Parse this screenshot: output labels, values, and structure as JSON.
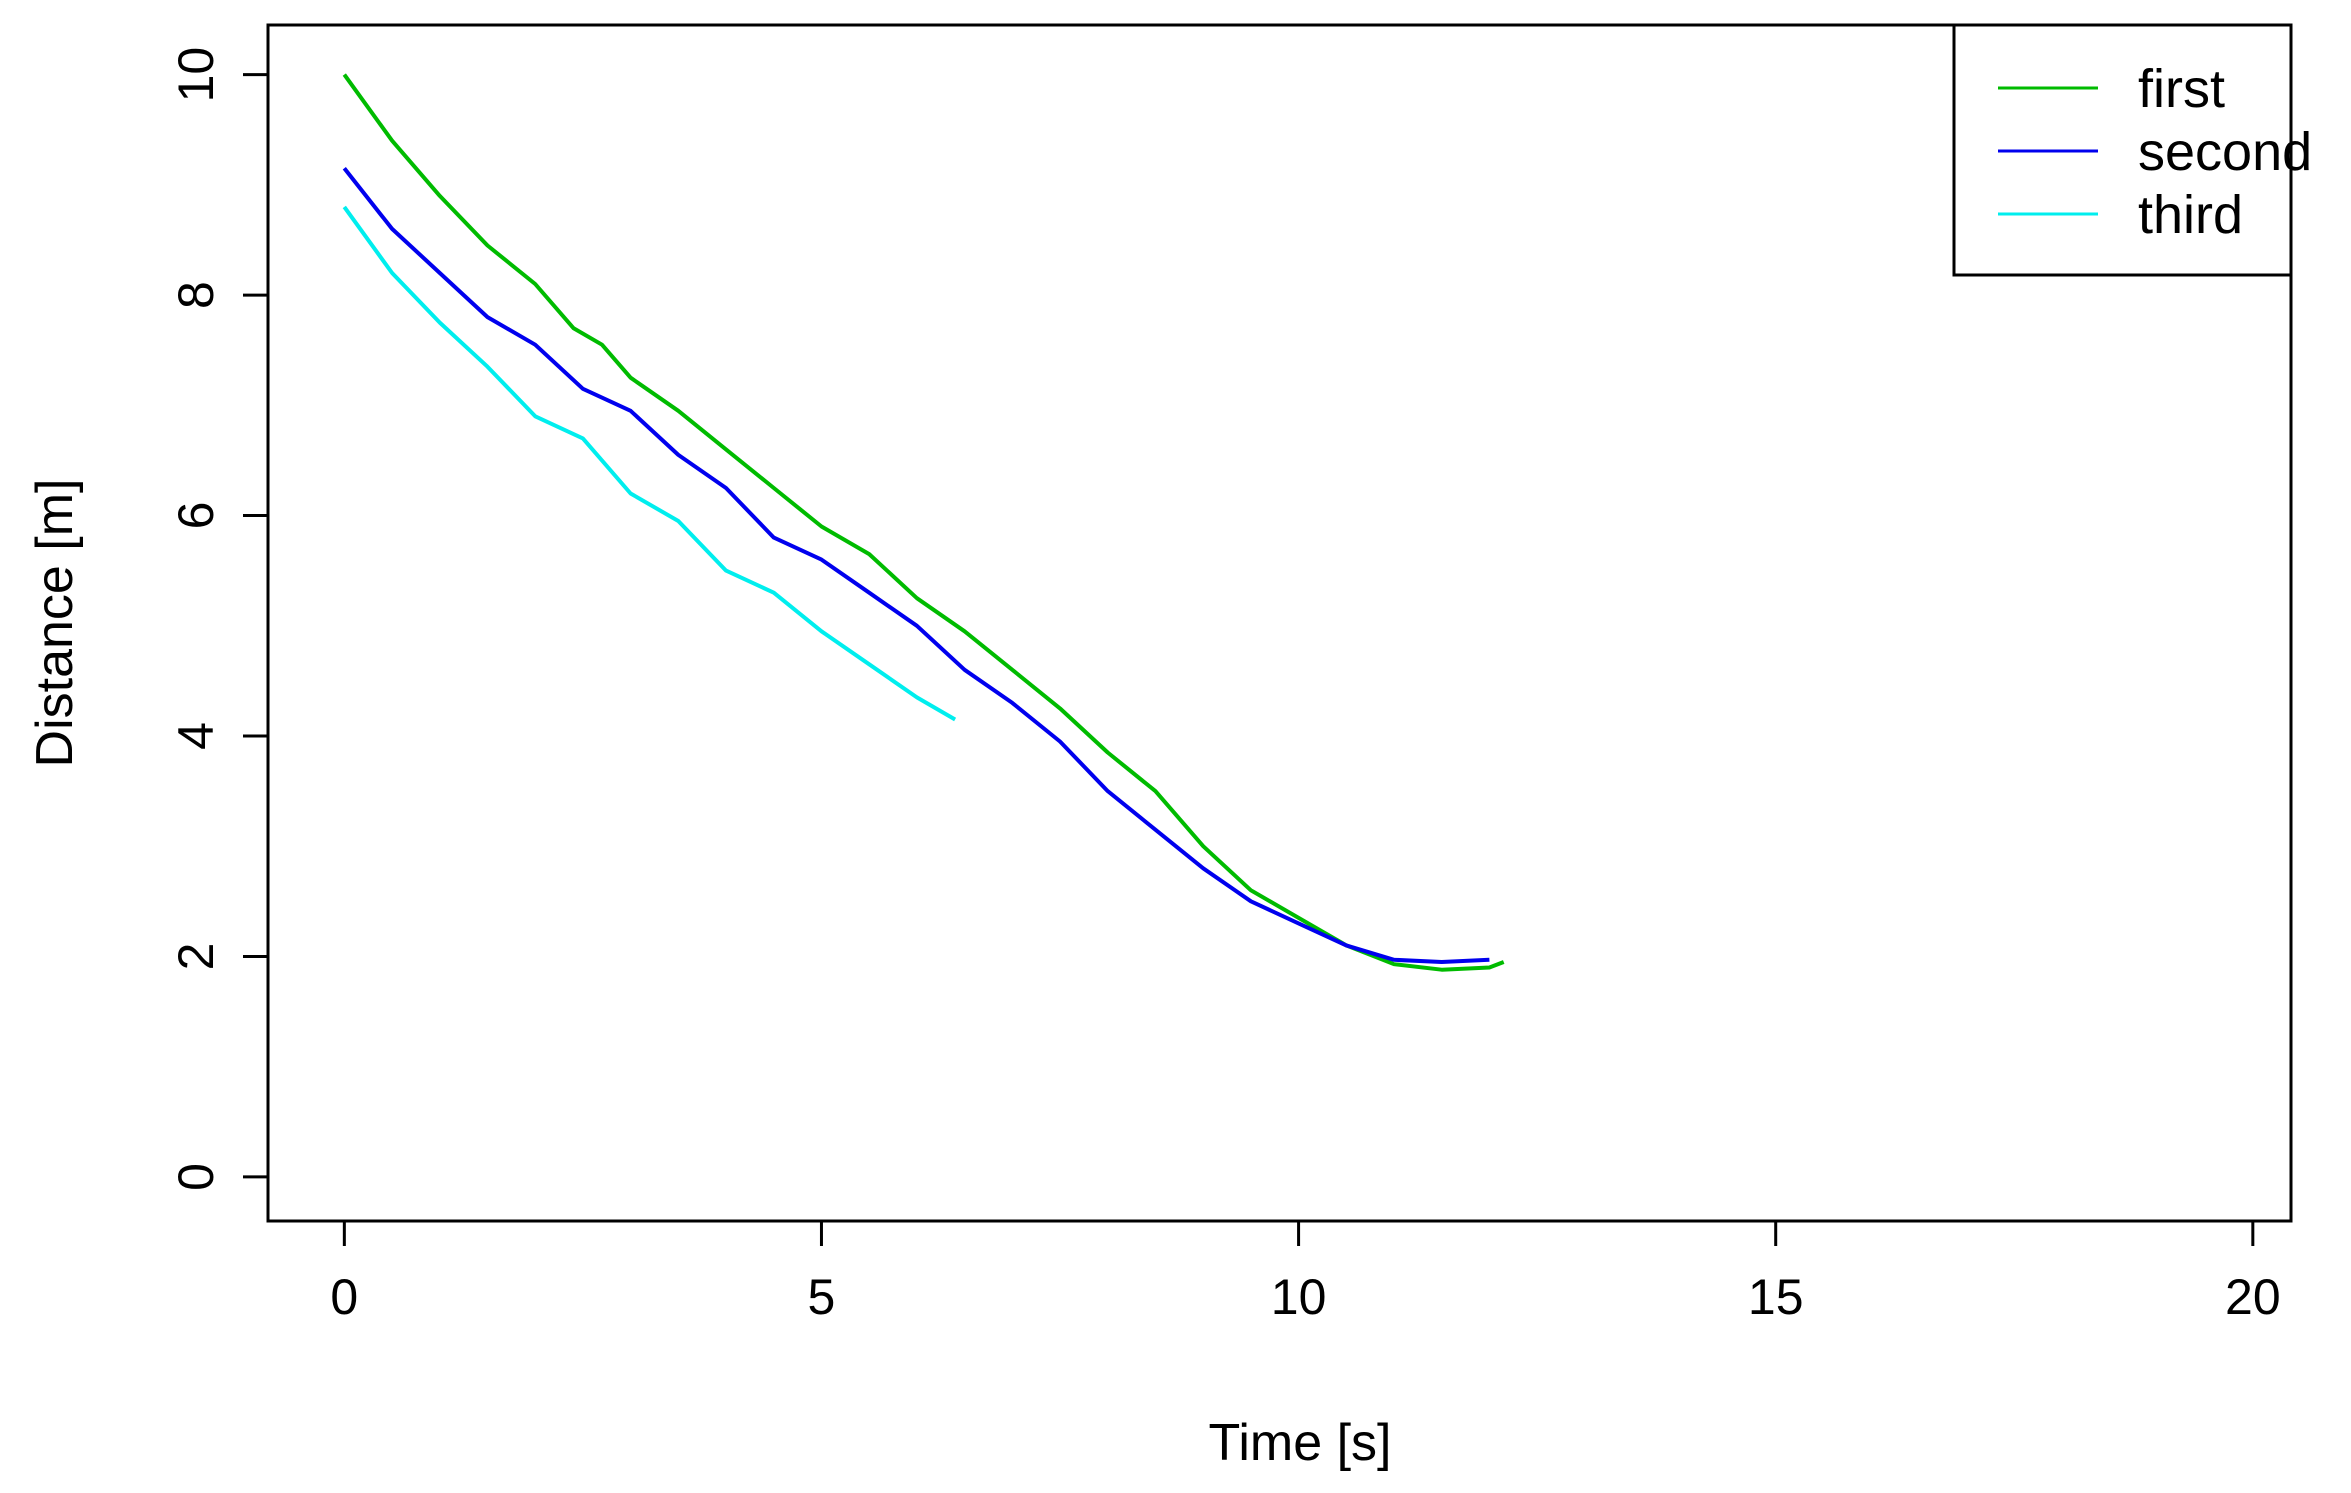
{
  "chart_data": {
    "type": "line",
    "title": "",
    "xlabel": "Time [s]",
    "ylabel": "Distance [m]",
    "xlim": [
      -0.8,
      20.4
    ],
    "ylim": [
      -0.4,
      10.45
    ],
    "xticks": [
      0,
      5,
      10,
      15,
      20
    ],
    "yticks": [
      0,
      2,
      4,
      6,
      8,
      10
    ],
    "grid": false,
    "legend_position": "top-right",
    "series": [
      {
        "name": "first",
        "color": "#00bb00",
        "x": [
          0,
          0.5,
          1,
          1.5,
          2,
          2.4,
          2.7,
          3,
          3.5,
          4,
          4.5,
          5,
          5.5,
          6,
          6.5,
          7,
          7.5,
          8,
          8.5,
          9,
          9.5,
          10,
          10.5,
          11,
          11.5,
          12,
          12.15
        ],
        "y": [
          10,
          9.4,
          8.9,
          8.45,
          8.1,
          7.7,
          7.55,
          7.25,
          6.95,
          6.6,
          6.25,
          5.9,
          5.65,
          5.25,
          4.95,
          4.6,
          4.25,
          3.85,
          3.5,
          3.0,
          2.6,
          2.35,
          2.1,
          1.93,
          1.88,
          1.9,
          1.95
        ]
      },
      {
        "name": "second",
        "color": "#0000ee",
        "x": [
          0,
          0.5,
          1,
          1.5,
          2,
          2.5,
          3,
          3.5,
          4,
          4.5,
          5,
          5.5,
          6,
          6.5,
          7,
          7.5,
          8,
          8.5,
          9,
          9.5,
          10,
          10.5,
          11,
          11.5,
          12
        ],
        "y": [
          9.15,
          8.6,
          8.2,
          7.8,
          7.55,
          7.15,
          6.95,
          6.55,
          6.25,
          5.8,
          5.6,
          5.3,
          5.0,
          4.6,
          4.3,
          3.95,
          3.5,
          3.15,
          2.8,
          2.5,
          2.3,
          2.1,
          1.97,
          1.95,
          1.97
        ]
      },
      {
        "name": "third",
        "color": "#00eeee",
        "x": [
          0,
          0.5,
          1,
          1.5,
          2,
          2.5,
          3,
          3.5,
          4,
          4.5,
          5,
          5.5,
          6,
          6.4
        ],
        "y": [
          8.8,
          8.2,
          7.75,
          7.35,
          6.9,
          6.7,
          6.2,
          5.95,
          5.5,
          5.3,
          4.95,
          4.65,
          4.35,
          4.15
        ]
      }
    ]
  }
}
